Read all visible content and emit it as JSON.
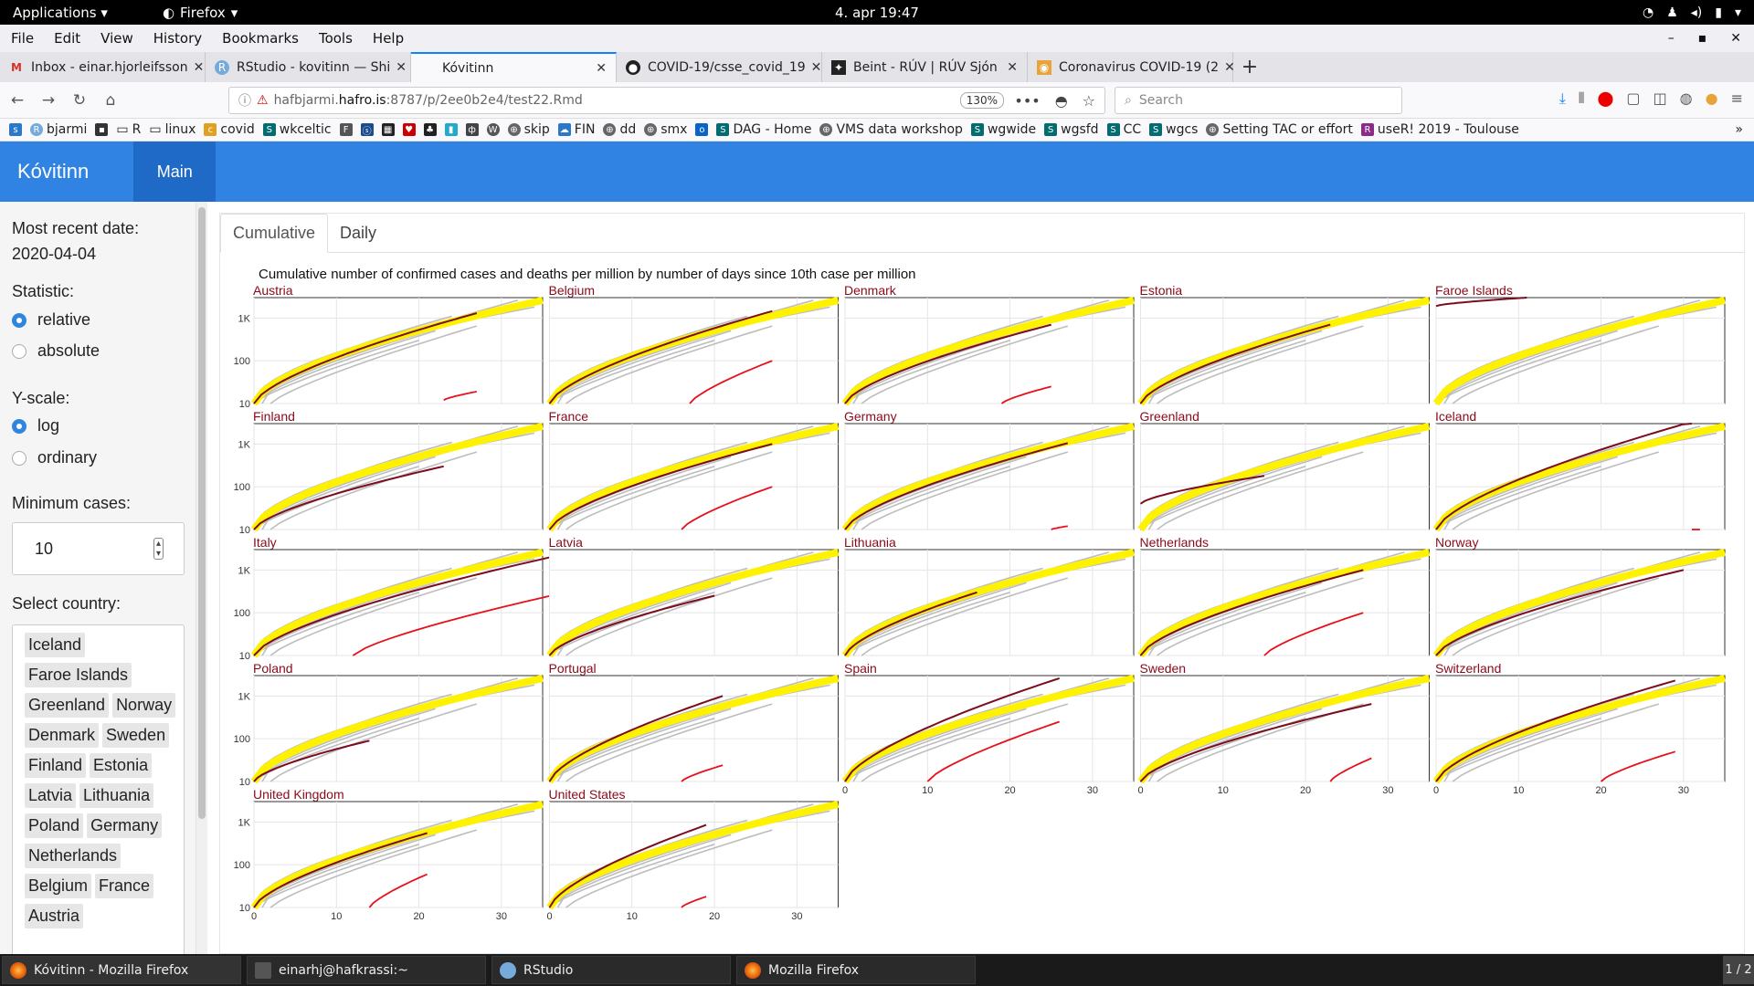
{
  "system": {
    "applications_label": "Applications",
    "firefox_label": "Firefox",
    "clock": "4. apr  19:47"
  },
  "menubar": [
    "File",
    "Edit",
    "View",
    "History",
    "Bookmarks",
    "Tools",
    "Help"
  ],
  "tabs": [
    {
      "title": "Inbox - einar.hjorleifsson",
      "favicon": "gmail-icon"
    },
    {
      "title": "RStudio - kovitinn — Shi",
      "favicon": "rstudio-icon"
    },
    {
      "title": "Kóvitinn",
      "favicon": "",
      "active": true
    },
    {
      "title": "COVID-19/csse_covid_19",
      "favicon": "github-icon"
    },
    {
      "title": "Beint - RÚV | RÚV Sjón",
      "favicon": "ruv-icon"
    },
    {
      "title": "Coronavirus COVID-19 (2",
      "favicon": "arcgis-icon"
    }
  ],
  "navbar": {
    "url_prefix": "hafbjarmi.",
    "url_host": "hafro.is",
    "url_rest": ":8787/p/2ee0b2e4/test22.Rmd",
    "zoom": "130%",
    "search_placeholder": "Search"
  },
  "bookmarks": [
    "bjarmi",
    "R",
    "linux",
    "covid",
    "wkceltic",
    "skip",
    "FIN",
    "dd",
    "smx",
    "DAG - Home",
    "VMS data workshop",
    "wgwide",
    "wgsfd",
    "CC",
    "wgcs",
    "Setting TAC or effort",
    "useR! 2019 - Toulouse"
  ],
  "app": {
    "brand": "Kóvitinn",
    "nav_main": "Main"
  },
  "sidebar": {
    "recent_label": "Most recent date:",
    "recent_value": "2020-04-04",
    "statistic_label": "Statistic:",
    "statistic_options": [
      "relative",
      "absolute"
    ],
    "statistic_selected": "relative",
    "yscale_label": "Y-scale:",
    "yscale_options": [
      "log",
      "ordinary"
    ],
    "yscale_selected": "log",
    "mincases_label": "Minimum cases:",
    "mincases_value": "10",
    "country_label": "Select country:",
    "countries": [
      "Iceland",
      "Faroe Islands",
      "Greenland",
      "Norway",
      "Denmark",
      "Sweden",
      "Finland",
      "Estonia",
      "Latvia",
      "Lithuania",
      "Poland",
      "Germany",
      "Netherlands",
      "Belgium",
      "France",
      "Austria"
    ]
  },
  "main_tabs": [
    "Cumulative",
    "Daily"
  ],
  "chart_data": {
    "type": "line",
    "title": "Cumulative number of confirmed cases and deaths per million by number of days since 10th case per million",
    "xlabel": "",
    "ylabel": "",
    "xlim": [
      0,
      35
    ],
    "ylim": [
      10,
      3000
    ],
    "yscale": "log",
    "x_ticks": [
      0,
      10,
      20,
      30
    ],
    "y_ticks": [
      {
        "value": 10,
        "label": "10"
      },
      {
        "value": 100,
        "label": "100"
      },
      {
        "value": 1000,
        "label": "1K"
      }
    ],
    "reference_band": "yellow",
    "grey_lines": "all other countries",
    "series_colors": {
      "cases": "#7b0d1e",
      "deaths": "#e8101a",
      "band": "#fff200",
      "others": "#bdbdbd"
    },
    "panels": [
      {
        "country": "Austria",
        "cases_end_day": 27,
        "cases_end": 1300,
        "cases_start": 10,
        "deaths_start_day": 23,
        "deaths_start": 12,
        "deaths_end_day": 27,
        "deaths_end": 19
      },
      {
        "country": "Belgium",
        "cases_end_day": 27,
        "cases_end": 1450,
        "cases_start": 10,
        "deaths_start_day": 17,
        "deaths_start": 10,
        "deaths_end_day": 27,
        "deaths_end": 100
      },
      {
        "country": "Denmark",
        "cases_end_day": 25,
        "cases_end": 700,
        "cases_start": 10,
        "deaths_start_day": 19,
        "deaths_start": 10,
        "deaths_end_day": 25,
        "deaths_end": 25
      },
      {
        "country": "Estonia",
        "cases_end_day": 23,
        "cases_end": 700,
        "cases_start": 10,
        "deaths_start_day": 0,
        "deaths_start": 0,
        "deaths_end_day": 0,
        "deaths_end": 0
      },
      {
        "country": "Faroe Islands",
        "cases_end_day": 11,
        "cases_end": 3000,
        "cases_start": 1900,
        "deaths_start_day": 0,
        "deaths_start": 0,
        "deaths_end_day": 0,
        "deaths_end": 0
      },
      {
        "country": "Finland",
        "cases_end_day": 23,
        "cases_end": 300,
        "cases_start": 10,
        "deaths_start_day": 0,
        "deaths_start": 0,
        "deaths_end_day": 0,
        "deaths_end": 0
      },
      {
        "country": "France",
        "cases_end_day": 27,
        "cases_end": 1000,
        "cases_start": 10,
        "deaths_start_day": 16,
        "deaths_start": 10,
        "deaths_end_day": 27,
        "deaths_end": 100
      },
      {
        "country": "Germany",
        "cases_end_day": 27,
        "cases_end": 1050,
        "cases_start": 10,
        "deaths_start_day": 25,
        "deaths_start": 10,
        "deaths_end_day": 27,
        "deaths_end": 12
      },
      {
        "country": "Greenland",
        "cases_end_day": 15,
        "cases_end": 180,
        "cases_start": 40,
        "deaths_start_day": 0,
        "deaths_start": 0,
        "deaths_end_day": 0,
        "deaths_end": 0
      },
      {
        "country": "Iceland",
        "cases_end_day": 31,
        "cases_end": 3300,
        "cases_start": 10,
        "deaths_start_day": 31,
        "deaths_start": 10,
        "deaths_end_day": 32,
        "deaths_end": 10
      },
      {
        "country": "Italy",
        "cases_end_day": 36,
        "cases_end": 2000,
        "cases_start": 10,
        "deaths_start_day": 12,
        "deaths_start": 10,
        "deaths_end_day": 36,
        "deaths_end": 250
      },
      {
        "country": "Latvia",
        "cases_end_day": 20,
        "cases_end": 250,
        "cases_start": 10,
        "deaths_start_day": 0,
        "deaths_start": 0,
        "deaths_end_day": 0,
        "deaths_end": 0
      },
      {
        "country": "Lithuania",
        "cases_end_day": 16,
        "cases_end": 300,
        "cases_start": 10,
        "deaths_start_day": 0,
        "deaths_start": 0,
        "deaths_end_day": 0,
        "deaths_end": 0
      },
      {
        "country": "Netherlands",
        "cases_end_day": 27,
        "cases_end": 1000,
        "cases_start": 10,
        "deaths_start_day": 15,
        "deaths_start": 10,
        "deaths_end_day": 27,
        "deaths_end": 100
      },
      {
        "country": "Norway",
        "cases_end_day": 30,
        "cases_end": 1000,
        "cases_start": 10,
        "deaths_start_day": 0,
        "deaths_start": 0,
        "deaths_end_day": 0,
        "deaths_end": 0
      },
      {
        "country": "Poland",
        "cases_end_day": 14,
        "cases_end": 90,
        "cases_start": 10,
        "deaths_start_day": 0,
        "deaths_start": 0,
        "deaths_end_day": 0,
        "deaths_end": 0
      },
      {
        "country": "Portugal",
        "cases_end_day": 21,
        "cases_end": 1000,
        "cases_start": 10,
        "deaths_start_day": 16,
        "deaths_start": 10,
        "deaths_end_day": 21,
        "deaths_end": 24
      },
      {
        "country": "Spain",
        "cases_end_day": 26,
        "cases_end": 2600,
        "cases_start": 10,
        "deaths_start_day": 10,
        "deaths_start": 10,
        "deaths_end_day": 26,
        "deaths_end": 250
      },
      {
        "country": "Sweden",
        "cases_end_day": 28,
        "cases_end": 650,
        "cases_start": 10,
        "deaths_start_day": 23,
        "deaths_start": 10,
        "deaths_end_day": 28,
        "deaths_end": 35
      },
      {
        "country": "Switzerland",
        "cases_end_day": 29,
        "cases_end": 2300,
        "cases_start": 10,
        "deaths_start_day": 20,
        "deaths_start": 10,
        "deaths_end_day": 29,
        "deaths_end": 50
      },
      {
        "country": "United Kingdom",
        "cases_end_day": 21,
        "cases_end": 550,
        "cases_start": 10,
        "deaths_start_day": 14,
        "deaths_start": 10,
        "deaths_end_day": 21,
        "deaths_end": 60
      },
      {
        "country": "United States",
        "cases_end_day": 19,
        "cases_end": 850,
        "cases_start": 10,
        "deaths_start_day": 16,
        "deaths_start": 10,
        "deaths_end_day": 19,
        "deaths_end": 18
      }
    ]
  },
  "taskbar": [
    {
      "label": "Kóvitinn - Mozilla Firefox",
      "active": true
    },
    {
      "label": "einarhj@hafkrassi:~"
    },
    {
      "label": "RStudio"
    },
    {
      "label": "Mozilla Firefox"
    }
  ],
  "pager": "1 / 2"
}
